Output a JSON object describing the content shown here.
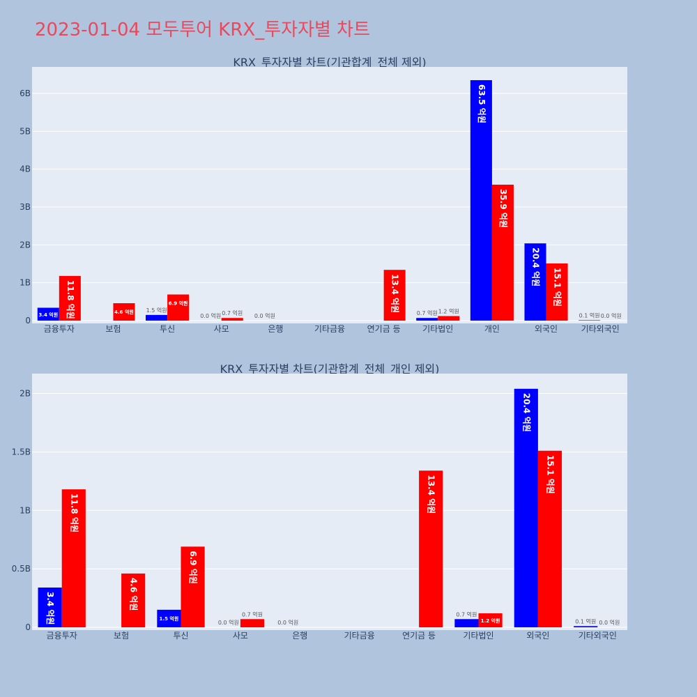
{
  "page_title": "2023-01-04 모두투어 KRX_투자자별 차트",
  "chart_data": [
    {
      "type": "bar",
      "title": "KRX_투자자별 차트(기관합계_전체 제외)",
      "categories": [
        "금융투자",
        "보험",
        "투신",
        "사모",
        "은행",
        "기타금융",
        "연기금 등",
        "기타법인",
        "개인",
        "외국인",
        "기타외국인"
      ],
      "ylim": [
        0,
        6.7
      ],
      "yticks": [
        0,
        1,
        2,
        3,
        4,
        5,
        6
      ],
      "ytick_labels": [
        "0",
        "1B",
        "2B",
        "3B",
        "4B",
        "5B",
        "6B"
      ],
      "grid": true,
      "series": [
        {
          "color": "#0000ff",
          "values": [
            0.34,
            null,
            0.15,
            0.0,
            0.0,
            null,
            null,
            0.07,
            6.35,
            2.04,
            0.01
          ],
          "labels": [
            "3.4 억원",
            "",
            "1.5 억원",
            "0.0 억원",
            "0.0 억원",
            "",
            "",
            "0.7 억원",
            "63.5 억원",
            "20.4 억원",
            "0.1 억원"
          ]
        },
        {
          "color": "#ff0000",
          "values": [
            1.18,
            0.46,
            0.69,
            0.07,
            null,
            null,
            1.34,
            0.12,
            3.59,
            1.51,
            0.0
          ],
          "labels": [
            "11.8 억원",
            "4.6 억원",
            "6.9 억원",
            "0.7 억원",
            "",
            "",
            "13.4 억원",
            "1.2 억원",
            "35.9 억원",
            "15.1 억원",
            "0.0 억원"
          ]
        }
      ]
    },
    {
      "type": "bar",
      "title": "KRX_투자자별 차트(기관합계_전체_개인 제외)",
      "categories": [
        "금융투자",
        "보험",
        "투신",
        "사모",
        "은행",
        "기타금융",
        "연기금 등",
        "기타법인",
        "외국인",
        "기타외국인"
      ],
      "ylim": [
        0,
        2.17
      ],
      "yticks": [
        0,
        0.5,
        1,
        1.5,
        2
      ],
      "ytick_labels": [
        "0",
        "0.5B",
        "1B",
        "1.5B",
        "2B"
      ],
      "grid": true,
      "series": [
        {
          "color": "#0000ff",
          "values": [
            0.34,
            null,
            0.15,
            0.0,
            0.0,
            null,
            null,
            0.07,
            2.04,
            0.01
          ],
          "labels": [
            "3.4 억원",
            "",
            "1.5 억원",
            "0.0 억원",
            "0.0 억원",
            "",
            "",
            "0.7 억원",
            "20.4 억원",
            "0.1 억원"
          ]
        },
        {
          "color": "#ff0000",
          "values": [
            1.18,
            0.46,
            0.69,
            0.07,
            null,
            null,
            1.34,
            0.12,
            1.51,
            0.0
          ],
          "labels": [
            "11.8 억원",
            "4.6 억원",
            "6.9 억원",
            "0.7 억원",
            "",
            "",
            "13.4 억원",
            "1.2 억원",
            "15.1 억원",
            "0.0 억원"
          ]
        }
      ]
    }
  ]
}
